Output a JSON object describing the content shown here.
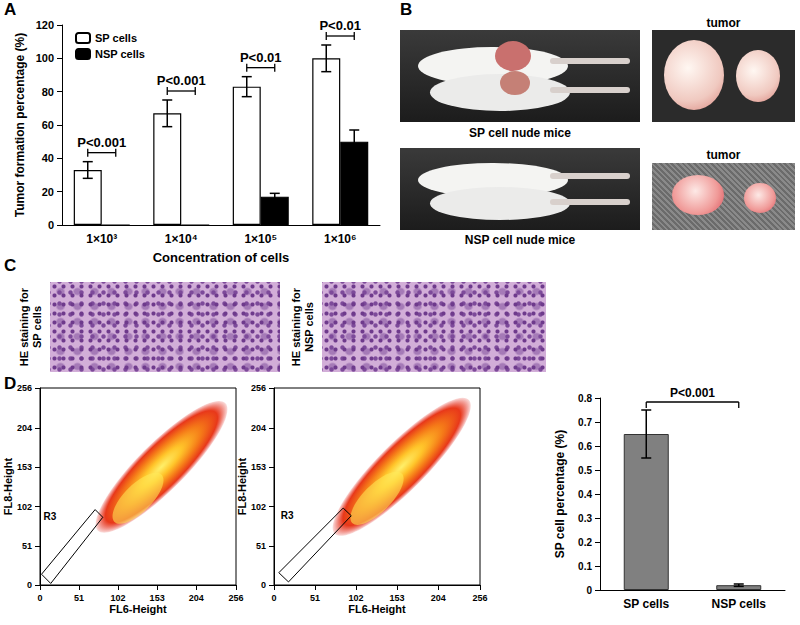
{
  "chart_data": [
    {
      "type": "bar",
      "y_label": "Tumor formation percentage (%)",
      "x_label": "Concentration of cells",
      "categories": [
        "1×10³",
        "1×10⁴",
        "1×10⁵",
        "1×10⁶"
      ],
      "series": [
        {
          "name": "SP cells",
          "color": "#ffffff",
          "values": [
            33,
            67,
            83,
            100
          ],
          "errors": [
            5,
            8,
            6,
            8
          ]
        },
        {
          "name": "NSP cells",
          "color": "#000000",
          "values": [
            0,
            0,
            17,
            50
          ],
          "errors": [
            0,
            0,
            2,
            7
          ]
        }
      ],
      "ylim": [
        0,
        120
      ],
      "yticks": [
        0,
        20,
        40,
        60,
        80,
        100,
        120
      ],
      "legend": "top-left",
      "annotations": [
        {
          "text": "P<0.001",
          "category": "1×10³"
        },
        {
          "text": "P<0.001",
          "category": "1×10⁴"
        },
        {
          "text": "P<0.01",
          "category": "1×10⁵"
        },
        {
          "text": "P<0.01",
          "category": "1×10⁶"
        }
      ]
    },
    {
      "type": "density",
      "x_label": "FL6-Height",
      "y_label": "FL8-Height",
      "xlim": [
        0,
        256
      ],
      "ylim": [
        0,
        256
      ],
      "xticks": [
        0,
        51,
        102,
        153,
        204,
        256
      ],
      "yticks": [
        0,
        51,
        102,
        153,
        204,
        256
      ],
      "gate": {
        "label": "R3",
        "polygon": [
          [
            2,
            14
          ],
          [
            14,
            2
          ],
          [
            82,
            88
          ],
          [
            72,
            98
          ]
        ]
      }
    },
    {
      "type": "density",
      "x_label": "FL6-Height",
      "y_label": "FL8-Height",
      "xlim": [
        0,
        256
      ],
      "ylim": [
        0,
        256
      ],
      "xticks": [
        0,
        51,
        102,
        153,
        204,
        256
      ],
      "yticks": [
        0,
        51,
        102,
        153,
        204,
        256
      ],
      "gate": {
        "label": "R3",
        "polygon": [
          [
            6,
            16
          ],
          [
            18,
            4
          ],
          [
            96,
            90
          ],
          [
            86,
            100
          ]
        ]
      }
    },
    {
      "type": "bar",
      "y_label": "SP cell percentage (%)",
      "categories": [
        "SP cells",
        "NSP cells"
      ],
      "values": [
        0.65,
        0.02
      ],
      "errors": [
        0.1,
        0.005
      ],
      "color": "#808080",
      "ylim": [
        0,
        0.8
      ],
      "yticks": [
        0,
        0.1,
        0.2,
        0.3,
        0.4,
        0.5,
        0.6,
        0.7,
        0.8
      ],
      "annotations": [
        {
          "text": "P<0.001",
          "from": "SP cells",
          "to": "NSP cells"
        }
      ]
    }
  ],
  "figure": {
    "panel_labels": [
      "A",
      "B",
      "C",
      "D"
    ],
    "B": {
      "rows": [
        {
          "mice_label": "SP cell nude mice",
          "tumor_label": "tumor"
        },
        {
          "mice_label": "NSP cell nude mice",
          "tumor_label": "tumor"
        }
      ]
    },
    "C": {
      "images": [
        "HE staining for SP cells",
        "HE staining for NSP cells"
      ]
    }
  }
}
